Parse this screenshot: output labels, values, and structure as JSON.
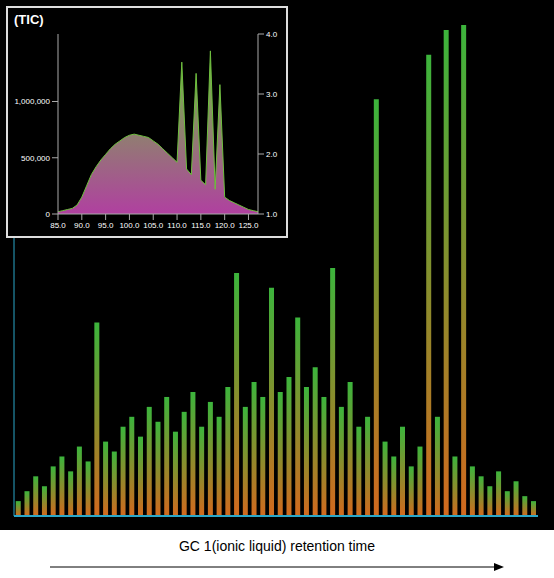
{
  "chart_data": [
    {
      "type": "area",
      "title": "(TIC)",
      "x": [
        85,
        86,
        87,
        88,
        89,
        90,
        91,
        92,
        93,
        94,
        95,
        96,
        97,
        98,
        99,
        100,
        101,
        102,
        103,
        104,
        105,
        106,
        107,
        108,
        109,
        110,
        111,
        112,
        113,
        114,
        115,
        116,
        117,
        118,
        119,
        120,
        121,
        122,
        123,
        124,
        125,
        126,
        127
      ],
      "values": [
        20000,
        30000,
        40000,
        50000,
        80000,
        150000,
        250000,
        350000,
        420000,
        480000,
        530000,
        580000,
        620000,
        650000,
        680000,
        700000,
        710000,
        700000,
        690000,
        680000,
        650000,
        620000,
        580000,
        540000,
        500000,
        460000,
        1350000,
        400000,
        350000,
        1250000,
        300000,
        260000,
        1450000,
        220000,
        1150000,
        150000,
        120000,
        100000,
        80000,
        60000,
        40000,
        30000,
        20000
      ],
      "color": "#6fbf3f",
      "xlim": [
        85,
        127
      ],
      "xticks": [
        {
          "value": 85,
          "label": "85.0"
        },
        {
          "value": 90,
          "label": "90.0"
        },
        {
          "value": 95,
          "label": "95.0"
        },
        {
          "value": 100,
          "label": "100.0"
        },
        {
          "value": 105,
          "label": "105.0"
        },
        {
          "value": 110,
          "label": "110.0"
        },
        {
          "value": 115,
          "label": "115.0"
        },
        {
          "value": 120,
          "label": "120.0"
        },
        {
          "value": 125,
          "label": "125.0"
        }
      ],
      "ylim": [
        0,
        1600000
      ],
      "yticks": [
        0,
        {
          "value": 500000,
          "label": "500,000"
        },
        {
          "value": 1000000,
          "label": "1,000,000"
        }
      ],
      "y2lim": [
        1,
        4
      ],
      "y2ticks": [
        {
          "value": 1,
          "label": "1.0"
        },
        {
          "value": 2,
          "label": "2.0"
        },
        {
          "value": 3,
          "label": "3.0"
        },
        {
          "value": 4,
          "label": "4.0"
        }
      ]
    },
    {
      "type": "bar",
      "x_label": "GC 1(ionic liquid) retention time",
      "categories": [
        null,
        null,
        null,
        null,
        null,
        null,
        null,
        null,
        null,
        null,
        null,
        null,
        null,
        null,
        null,
        null,
        null,
        null,
        null,
        null,
        null,
        null,
        null,
        null,
        null,
        null,
        null,
        null,
        null,
        null,
        null,
        null,
        null,
        null,
        null,
        null,
        null,
        null,
        null,
        null,
        null,
        null,
        null,
        null,
        null,
        null,
        null,
        null,
        null,
        null,
        null,
        null,
        null,
        null,
        null,
        null,
        null,
        null,
        null,
        null
      ],
      "values": [
        3,
        5,
        8,
        6,
        10,
        12,
        9,
        14,
        11,
        39,
        15,
        13,
        18,
        20,
        16,
        22,
        19,
        24,
        17,
        21,
        25,
        18,
        23,
        20,
        26,
        49,
        22,
        27,
        24,
        46,
        25,
        28,
        40,
        26,
        30,
        24,
        50,
        22,
        27,
        18,
        20,
        84,
        15,
        12,
        18,
        10,
        14,
        93,
        20,
        98,
        12,
        99,
        10,
        8,
        6,
        9,
        5,
        7,
        4,
        3
      ],
      "color": "#d2691e",
      "ylim": [
        0,
        100
      ],
      "tick_labels": false
    }
  ]
}
